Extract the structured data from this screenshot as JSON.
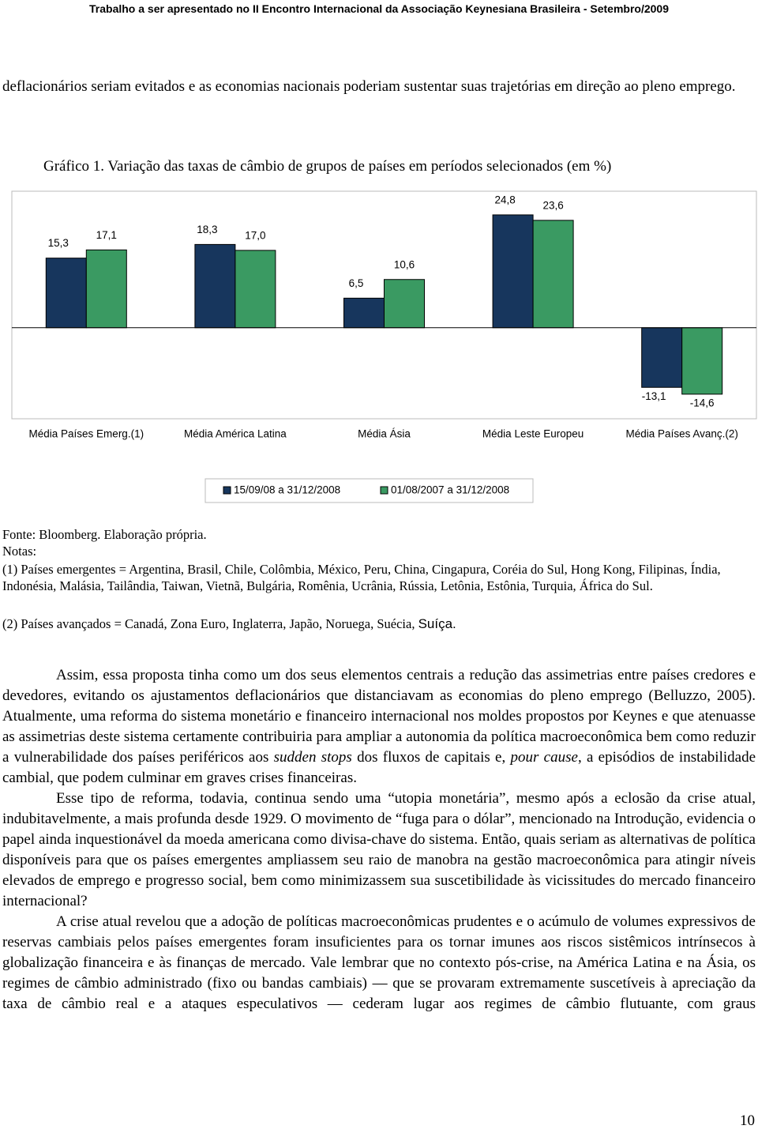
{
  "header": "Trabalho a ser apresentado no II Encontro Internacional da Associação Keynesiana Brasileira - Setembro/2009",
  "intro": "deflacionários seriam evitados e as economias nacionais poderiam sustentar suas trajetórias em direção ao pleno emprego.",
  "caption": "Gráfico 1. Variação das taxas de câmbio de grupos de países em períodos selecionados (em %)",
  "chart_data": {
    "type": "bar",
    "categories": [
      "Média Países Emerg.(1)",
      "Média América Latina",
      "Média Ásia",
      "Média Leste Europeu",
      "Média Países Avanç.(2)"
    ],
    "series": [
      {
        "name": "15/09/08 a 31/12/2008",
        "color": "#17365d",
        "values": [
          15.3,
          18.3,
          6.5,
          24.8,
          -13.1
        ],
        "value_labels": [
          "15,3",
          "18,3",
          "6,5",
          "24,8",
          "-13,1"
        ]
      },
      {
        "name": "01/08/2007 a 31/12/2008",
        "color": "#3a9a62",
        "values": [
          17.1,
          17.0,
          10.6,
          23.6,
          -14.6
        ],
        "value_labels": [
          "17,1",
          "17,0",
          "10,6",
          "23,6",
          "-14,6"
        ]
      }
    ],
    "ylim": [
      -20,
      30
    ],
    "grid": false,
    "legend": "bottom"
  },
  "source": {
    "label": "Fonte",
    "text": ": Bloomberg. Elaboração própria."
  },
  "notes": {
    "label": "Notas",
    "colon": ":",
    "note1": "(1) Países emergentes = Argentina, Brasil, Chile, Colômbia, México, Peru, China, Cingapura, Coréia do Sul, Hong Kong, Filipinas, Índia, Indonésia, Malásia, Tailândia, Taiwan, Vietnã, Bulgária, Romênia, Ucrânia, Rússia, Letônia, Estônia, Turquia, África do Sul.",
    "note2": [
      "(2) Países avançados = Canadá, Zona Euro, Inglaterra, Japão, Noruega, Suécia, ",
      "Suíça."
    ]
  },
  "paragraphs": [
    [
      "Assim, essa proposta tinha como um dos seus elementos centrais a redução das assimetrias entre países credores e devedores, evitando os ajustamentos deflacionários que distanciavam as economias do pleno emprego (Belluzzo, 2005). Atualmente, uma reforma do sistema monetário e financeiro internacional nos moldes propostos por Keynes e que atenuasse as assimetrias deste sistema certamente contribuiria para ampliar a autonomia da política macroeconômica bem como reduzir a vulnerabilidade dos países periféricos aos ",
      "sudden stops",
      " dos fluxos de capitais e, ",
      "pour cause",
      ", a episódios de instabilidade cambial, que podem culminar em graves crises financeiras."
    ],
    [
      "Esse tipo de reforma, todavia, continua sendo uma “utopia monetária”, mesmo após a eclosão da crise atual, indubitavelmente, a mais profunda desde 1929. O movimento de “fuga para o dólar”, mencionado na Introdução, evidencia o papel ainda inquestionável da moeda americana como divisa-chave do sistema. Então, quais seriam as alternativas de política disponíveis para que os países emergentes ampliassem seu raio de manobra na gestão macroeconômica para atingir níveis elevados de emprego e progresso social, bem como minimizassem sua suscetibilidade às vicissitudes do mercado financeiro internacional?"
    ],
    [
      "A crise atual revelou que a adoção de políticas macroeconômicas prudentes e o acúmulo de volumes expressivos de reservas cambiais pelos países emergentes foram insuficientes para os tornar imunes aos riscos sistêmicos intrínsecos à globalização financeira e às finanças de mercado. Vale lembrar que no contexto pós-crise, na América Latina e na Ásia, os regimes de câmbio administrado (fixo ou bandas cambiais) — que se provaram extremamente suscetíveis à apreciação da taxa de câmbio real e a ataques especulativos — cederam lugar aos regimes de câmbio flutuante, com graus"
    ]
  ],
  "page_number": "10"
}
